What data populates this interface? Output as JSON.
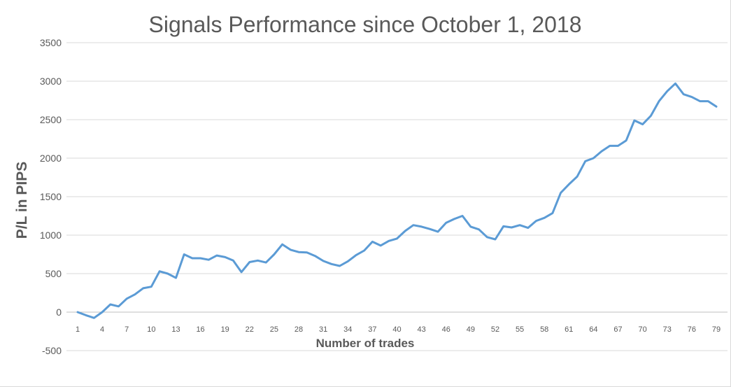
{
  "chart_data": {
    "type": "line",
    "title": "Signals Performance since October 1, 2018",
    "xlabel": "Number of trades",
    "ylabel": "P/L in PIPS",
    "ylim": [
      -500,
      3500
    ],
    "yticks": [
      -500,
      0,
      500,
      1000,
      1500,
      2000,
      2500,
      3000,
      3500
    ],
    "ytick_labels": [
      "-500",
      "0",
      "500",
      "1000",
      "1500",
      "2000",
      "2500",
      "3000",
      "3500"
    ],
    "xlim": [
      1,
      79
    ],
    "xticks": [
      1,
      4,
      7,
      10,
      13,
      16,
      19,
      22,
      25,
      28,
      31,
      34,
      37,
      40,
      43,
      46,
      49,
      52,
      55,
      58,
      61,
      64,
      67,
      70,
      73,
      76,
      79
    ],
    "xtick_labels": [
      "1",
      "4",
      "7",
      "10",
      "13",
      "16",
      "19",
      "22",
      "25",
      "28",
      "31",
      "34",
      "37",
      "40",
      "43",
      "46",
      "49",
      "52",
      "55",
      "58",
      "61",
      "64",
      "67",
      "70",
      "73",
      "76",
      "79"
    ],
    "grid": true,
    "legend": "none",
    "series_color": "#5b9bd5",
    "series": [
      {
        "x": [
          1,
          2,
          3,
          4,
          5,
          6,
          7,
          8,
          9,
          10,
          11,
          12,
          13,
          14,
          15,
          16,
          17,
          18,
          19,
          20,
          21,
          22,
          23,
          24,
          25,
          26,
          27,
          28,
          29,
          30,
          31,
          32,
          33,
          34,
          35,
          36,
          37,
          38,
          39,
          40,
          41,
          42,
          43,
          44,
          45,
          46,
          47,
          48,
          49,
          50,
          51,
          52,
          53,
          54,
          55,
          56,
          57,
          58,
          59,
          60,
          61,
          62,
          63,
          64,
          65,
          66,
          67,
          68,
          69,
          70,
          71,
          72,
          73,
          74,
          75,
          76,
          77,
          78,
          79
        ],
        "values": [
          0,
          -40,
          -75,
          0,
          100,
          75,
          175,
          230,
          310,
          330,
          530,
          500,
          445,
          750,
          700,
          700,
          680,
          735,
          715,
          670,
          520,
          650,
          670,
          645,
          750,
          880,
          810,
          780,
          775,
          730,
          665,
          625,
          600,
          660,
          740,
          800,
          915,
          865,
          925,
          955,
          1055,
          1130,
          1110,
          1080,
          1045,
          1160,
          1210,
          1250,
          1110,
          1075,
          975,
          945,
          1115,
          1100,
          1130,
          1095,
          1185,
          1225,
          1285,
          1550,
          1660,
          1760,
          1960,
          2000,
          2090,
          2160,
          2160,
          2230,
          2490,
          2440,
          2550,
          2740,
          2870,
          2970,
          2830,
          2795,
          2740,
          2740,
          2670
        ]
      }
    ]
  }
}
